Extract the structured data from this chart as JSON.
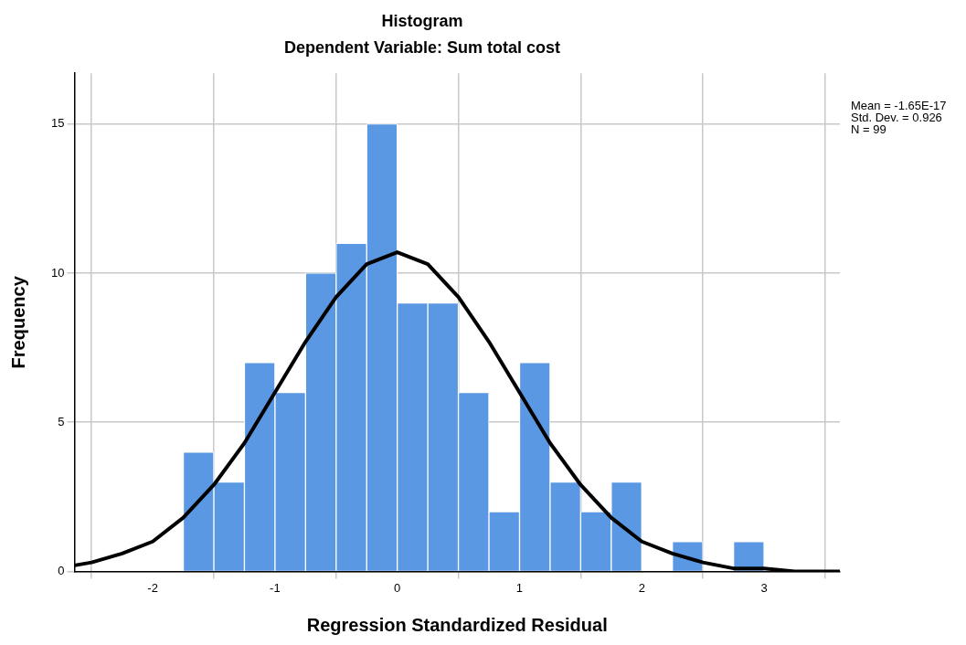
{
  "chart_data": {
    "type": "histogram",
    "title": "Histogram",
    "subtitle": "Dependent Variable: Sum total cost",
    "xlabel": "Regression Standardized Residual",
    "ylabel": "Frequency",
    "bins": [
      -1.75,
      -1.5,
      -1.25,
      -1,
      -0.75,
      -0.5,
      -0.25,
      0,
      0.25,
      0.5,
      0.75,
      1,
      1.25,
      1.5,
      1.75,
      2,
      2.25,
      2.5,
      2.75,
      3
    ],
    "values": [
      4,
      3,
      7,
      6,
      10,
      11,
      15,
      9,
      9,
      6,
      2,
      7,
      3,
      2,
      3,
      0,
      1,
      0,
      1
    ],
    "color": "#5a98e4",
    "series": [
      {
        "type": "line",
        "color": "#000000",
        "x": [
          -2.64,
          -2.5,
          -2.25,
          -2,
          -1.75,
          -1.5,
          -1.25,
          -1,
          -0.75,
          -0.5,
          -0.25,
          0,
          0.25,
          0.5,
          0.75,
          1,
          1.25,
          1.5,
          1.75,
          2,
          2.25,
          2.5,
          2.75,
          3,
          3.25,
          3.62
        ],
        "values": [
          0.2,
          0.3,
          0.6,
          1,
          1.8,
          2.9,
          4.3,
          6,
          7.7,
          9.2,
          10.3,
          10.7,
          10.3,
          9.2,
          7.7,
          6,
          4.3,
          2.9,
          1.8,
          1,
          0.6,
          0.3,
          0.1,
          0.1,
          0,
          0
        ]
      }
    ],
    "xlim": [
      -2.64,
      3.62
    ],
    "xticks": [
      -2,
      -1,
      0,
      1,
      2,
      3
    ],
    "ylim": [
      0,
      16.7
    ],
    "yticks": [
      0,
      5,
      10,
      15
    ],
    "grid": true,
    "legend": false,
    "marker": "none",
    "line_style": "solid",
    "annotations": [
      "Mean = -1.65E-17",
      "Std. Dev. = 0.926",
      "N = 99"
    ]
  }
}
